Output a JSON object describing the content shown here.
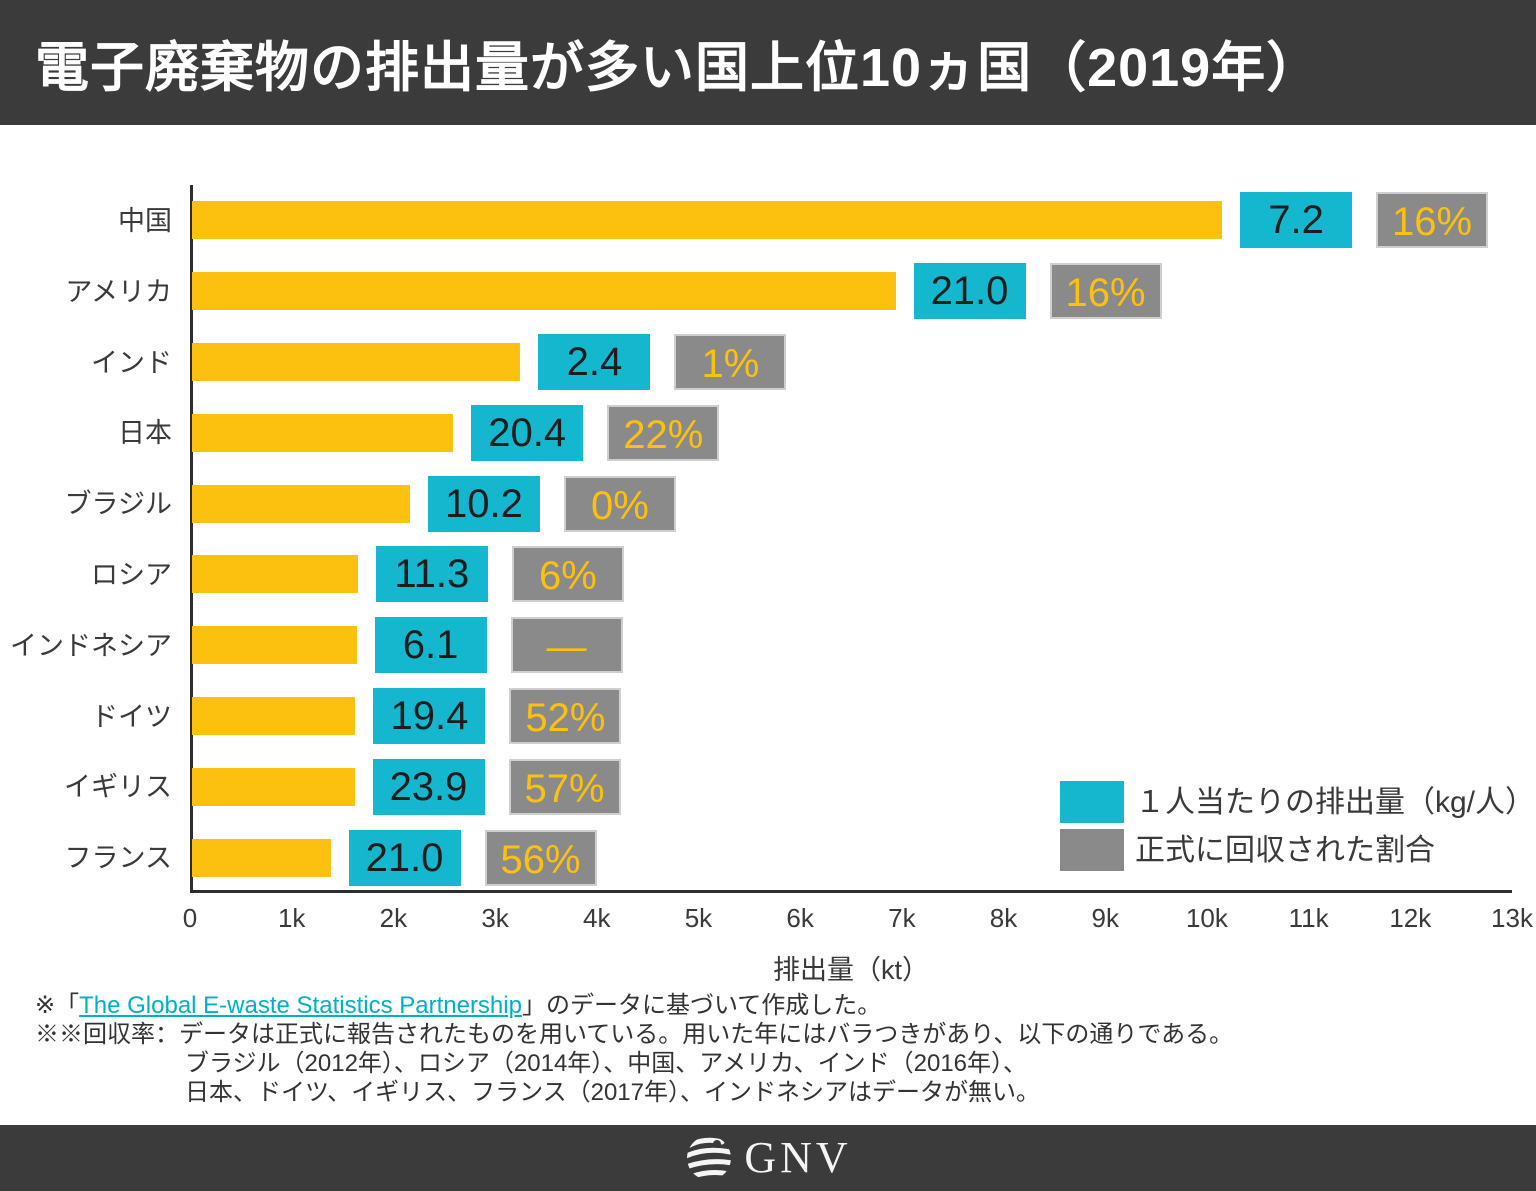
{
  "title": "電子廃棄物の排出量が多い国上位10ヵ国（2019年）",
  "colors": {
    "header_bg": "#3b3b3b",
    "bar_yellow": "#fcc10e",
    "per_capita_cyan": "#14b7cd",
    "rate_gray": "#8a8a8a",
    "rate_text_yellow": "#fcc10e",
    "link_teal": "#00afc8",
    "axis_dark": "#2e2e2e"
  },
  "chart_data": {
    "type": "bar",
    "orientation": "horizontal",
    "title": "電子廃棄物の排出量が多い国上位10ヵ国（2019年）",
    "categories": [
      "中国",
      "アメリカ",
      "インド",
      "日本",
      "ブラジル",
      "ロシア",
      "インドネシア",
      "ドイツ",
      "イギリス",
      "フランス"
    ],
    "series": [
      {
        "name": "排出量（kt）",
        "values": [
          10129,
          6918,
          3230,
          2569,
          2143,
          1631,
          1618,
          1607,
          1598,
          1362
        ]
      },
      {
        "name": "１人当たりの排出量（kg/人）",
        "values": [
          "7.2",
          "21.0",
          "2.4",
          "20.4",
          "10.2",
          "11.3",
          "6.1",
          "19.4",
          "23.9",
          "21.0"
        ]
      },
      {
        "name": "正式に回収された割合",
        "values": [
          "16%",
          "16%",
          "1%",
          "22%",
          "0%",
          "6%",
          "—",
          "52%",
          "57%",
          "56%"
        ]
      }
    ],
    "xlabel": "排出量（kt）",
    "xlim": [
      0,
      13000
    ],
    "x_ticks": [
      "0",
      "1k",
      "2k",
      "3k",
      "4k",
      "5k",
      "6k",
      "7k",
      "8k",
      "9k",
      "10k",
      "11k",
      "12k",
      "13k"
    ],
    "grid": false,
    "legend_position": "bottom-right"
  },
  "legend": {
    "per_capita": "１人当たりの排出量（kg/人）",
    "rate": "正式に回収された割合"
  },
  "footnotes": {
    "line1_prefix": "※「",
    "line1_link": "The Global E-waste Statistics Partnership",
    "line1_suffix": "」のデータに基づいて作成した。",
    "line2": "※※回収率：データは正式に報告されたものを用いている。用いた年にはバラつきがあり、以下の通りである。",
    "line3": "ブラジル（2012年）、ロシア（2014年）、中国、アメリカ、インド（2016年）、",
    "line4": "日本、ドイツ、イギリス、フランス（2017年）、インドネシアはデータが無い。"
  },
  "footer": {
    "logo_text": "GNV"
  }
}
